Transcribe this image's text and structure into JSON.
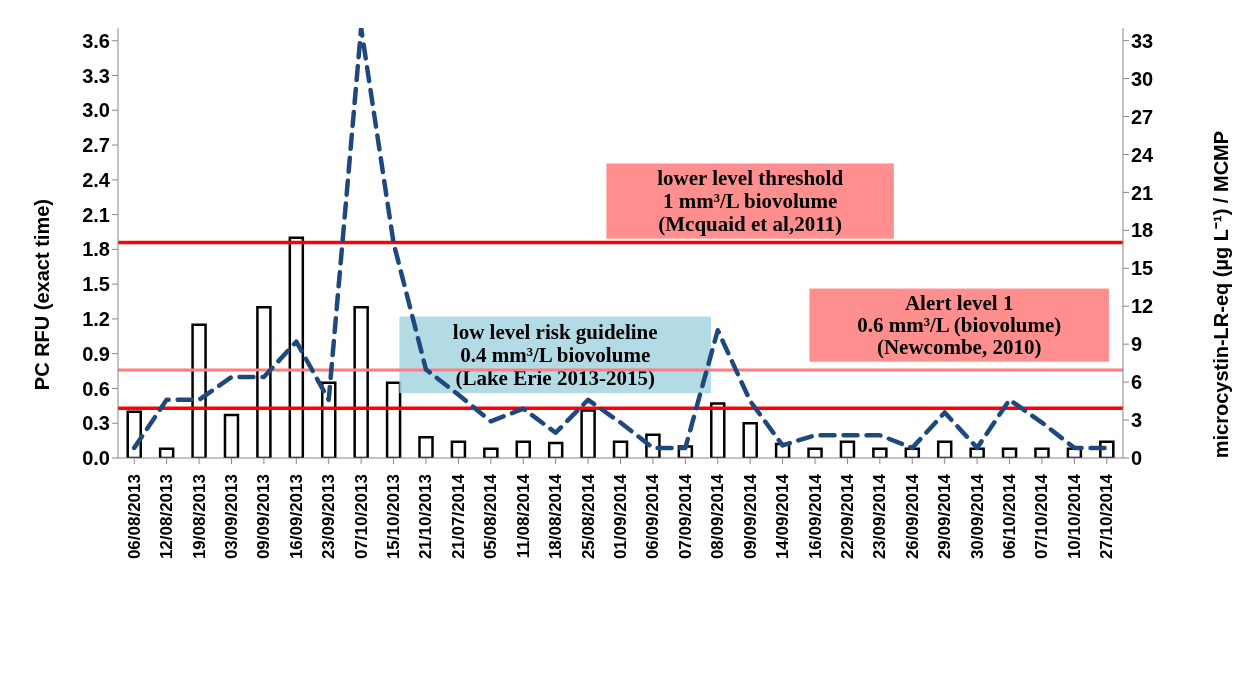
{
  "chart_data": {
    "type": "bar",
    "categories": [
      "06/08/2013",
      "12/08/2013",
      "19/08/2013",
      "03/09/2013",
      "09/09/2013",
      "16/09/2013",
      "23/09/2013",
      "07/10/2013",
      "15/10/2013",
      "21/10/2013",
      "21/07/2014",
      "05/08/2014",
      "11/08/2014",
      "18/08/2014",
      "25/08/2014",
      "01/09/2014",
      "06/09/2014",
      "07/09/2014",
      "08/09/2014",
      "09/09/2014",
      "14/09/2014",
      "16/09/2014",
      "22/09/2014",
      "23/09/2014",
      "26/09/2014",
      "29/09/2014",
      "30/09/2014",
      "06/10/2014",
      "07/10/2014",
      "10/10/2014",
      "27/10/2014"
    ],
    "series": [
      {
        "color": "#ffffff",
        "values": [
          0.4,
          0.08,
          1.15,
          0.37,
          1.3,
          1.9,
          0.65,
          1.3,
          0.65,
          0.18,
          0.14,
          0.08,
          0.14,
          0.13,
          0.41,
          0.14,
          0.2,
          0.1,
          0.47,
          0.3,
          0.12,
          0.08,
          0.14,
          0.08,
          0.08,
          0.14,
          0.08,
          0.08,
          0.08,
          0.08,
          0.14
        ]
      },
      {
        "type": "line",
        "axis": "y2",
        "color": "#1f497d",
        "line_style": "dashed",
        "marker": "none",
        "values": [
          0.8,
          4.6,
          4.6,
          6.4,
          6.4,
          9.2,
          4.6,
          34,
          17,
          7,
          5,
          2.9,
          3.9,
          2,
          4.6,
          2.8,
          0.8,
          0.8,
          10.1,
          4.5,
          1,
          1.8,
          1.8,
          1.8,
          0.8,
          3.6,
          0.8,
          4.6,
          2.8,
          0.8,
          0.8
        ]
      }
    ],
    "ylabel": "PC RFU (exact time)",
    "y2label": "microcystin-LR-eq (µg L⁻¹)  / MCMP",
    "ylim": [
      0,
      3.71
    ],
    "yticks": [
      {
        "value": 0,
        "label": "0.0"
      },
      0.3,
      0.6,
      0.9,
      1.2,
      1.5,
      1.8,
      2.1,
      2.4,
      2.7,
      {
        "value": 3,
        "label": "3.0"
      },
      3.3,
      3.6
    ],
    "y2lim": [
      0,
      34
    ],
    "y2ticks": [
      0,
      3,
      6,
      9,
      12,
      15,
      18,
      21,
      24,
      27,
      30,
      33
    ],
    "ref_lines": [
      {
        "axis": "y",
        "value": 0.43,
        "color": "#ff0000",
        "label": "low level risk guideline\n0.4 mm³/L  biovolume\n(Lake Erie 2013-2015)"
      },
      {
        "axis": "y",
        "value": 1.86,
        "color": "#ff0000",
        "label": "lower level threshold\n1 mm³/L  biovolume\n(Mcquaid et al,2011)"
      },
      {
        "axis": "y",
        "value": 0.76,
        "color": "#ff7c80",
        "label": "Alert level 1\n0.6 mm³/L  (biovolume)\n(Newcombe, 2010)"
      }
    ],
    "grid": false,
    "legend": false
  }
}
